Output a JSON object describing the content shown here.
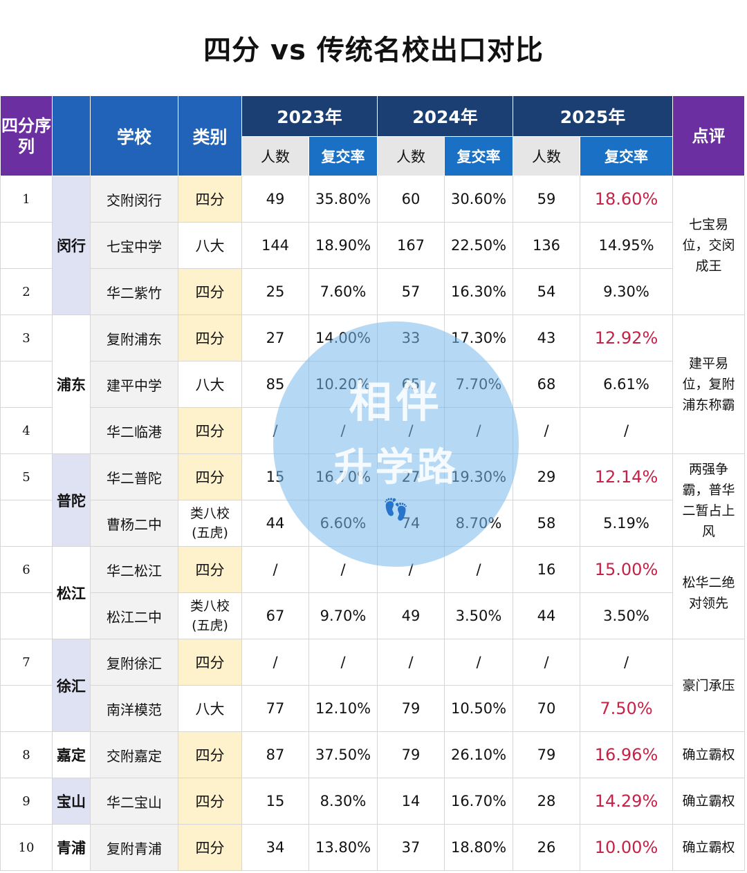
{
  "title": "四分 vs 传统名校出口对比",
  "header": {
    "seq": "四分序列",
    "school": "学校",
    "category": "类别",
    "years": [
      "2023年",
      "2024年",
      "2025年"
    ],
    "count": "人数",
    "rate": "复交率",
    "comment": "点评"
  },
  "rows": [
    {
      "seq": "1",
      "school": "交附闵行",
      "category": "四分",
      "v": [
        "49",
        "35.80%",
        "60",
        "30.60%",
        "59",
        "18.60%"
      ]
    },
    {
      "seq": "",
      "school": "七宝中学",
      "category": "八大",
      "v": [
        "144",
        "18.90%",
        "167",
        "22.50%",
        "136",
        "14.95%"
      ]
    },
    {
      "seq": "2",
      "school": "华二紫竹",
      "category": "四分",
      "v": [
        "25",
        "7.60%",
        "57",
        "16.30%",
        "54",
        "9.30%"
      ]
    },
    {
      "seq": "3",
      "school": "复附浦东",
      "category": "四分",
      "v": [
        "27",
        "14.00%",
        "33",
        "17.30%",
        "43",
        "12.92%"
      ]
    },
    {
      "seq": "",
      "school": "建平中学",
      "category": "八大",
      "v": [
        "85",
        "10.20%",
        "65",
        "7.70%",
        "68",
        "6.61%"
      ]
    },
    {
      "seq": "4",
      "school": "华二临港",
      "category": "四分",
      "v": [
        "/",
        "/",
        "/",
        "/",
        "/",
        "/"
      ]
    },
    {
      "seq": "5",
      "school": "华二普陀",
      "category": "四分",
      "v": [
        "15",
        "16.70%",
        "27",
        "19.30%",
        "29",
        "12.14%"
      ]
    },
    {
      "seq": "",
      "school": "曹杨二中",
      "category": "类八校(五虎)",
      "v": [
        "44",
        "6.60%",
        "74",
        "8.70%",
        "58",
        "5.19%"
      ]
    },
    {
      "seq": "6",
      "school": "华二松江",
      "category": "四分",
      "v": [
        "/",
        "/",
        "/",
        "/",
        "16",
        "15.00%"
      ]
    },
    {
      "seq": "",
      "school": "松江二中",
      "category": "类八校(五虎)",
      "v": [
        "67",
        "9.70%",
        "49",
        "3.50%",
        "44",
        "3.50%"
      ]
    },
    {
      "seq": "7",
      "school": "复附徐汇",
      "category": "四分",
      "v": [
        "/",
        "/",
        "/",
        "/",
        "/",
        "/"
      ]
    },
    {
      "seq": "",
      "school": "南洋模范",
      "category": "八大",
      "v": [
        "77",
        "12.10%",
        "79",
        "10.50%",
        "70",
        "7.50%"
      ]
    },
    {
      "seq": "8",
      "school": "交附嘉定",
      "category": "四分",
      "v": [
        "87",
        "37.50%",
        "79",
        "26.10%",
        "79",
        "16.96%"
      ]
    },
    {
      "seq": "9",
      "school": "华二宝山",
      "category": "四分",
      "v": [
        "15",
        "8.30%",
        "14",
        "16.70%",
        "28",
        "14.29%"
      ]
    },
    {
      "seq": "10",
      "school": "复附青浦",
      "category": "四分",
      "v": [
        "34",
        "13.80%",
        "37",
        "18.80%",
        "26",
        "10.00%"
      ]
    }
  ],
  "districts": [
    "闵行",
    "浦东",
    "普陀",
    "松江",
    "徐汇",
    "嘉定",
    "宝山",
    "青浦"
  ],
  "comments": [
    "七宝易位，交闵成王",
    "建平易位，复附浦东称霸",
    "两强争霸，普华二暂占上风",
    "松华二绝对领先",
    "豪门承压",
    "确立霸权",
    "确立霸权",
    "确立霸权"
  ],
  "watermark": {
    "line1": "相伴",
    "line2": "升学路"
  },
  "colors": {
    "purple": "#6b2fa2",
    "dark_blue": "#1b3f72",
    "blue": "#2163b8",
    "highlight_red": "#c62146",
    "category_yellow": "#fdf2cc"
  }
}
